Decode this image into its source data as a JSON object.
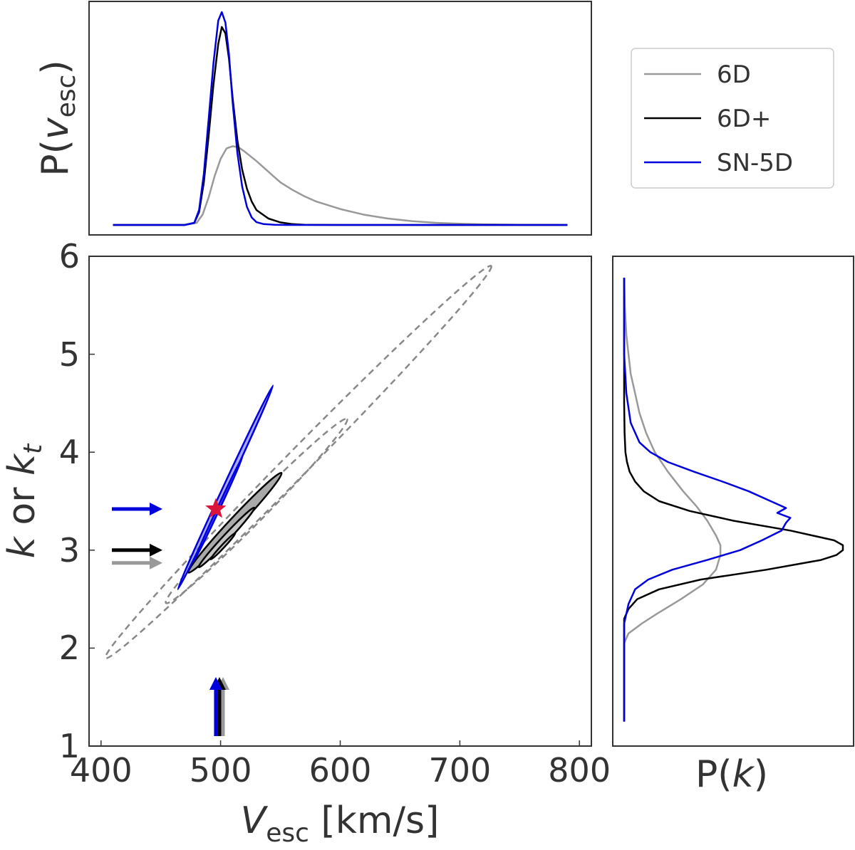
{
  "chart_data": {
    "type": "corner-plot",
    "axes": {
      "main": {
        "x_ticks": [
          "400",
          "500",
          "600",
          "700",
          "800"
        ],
        "y_ticks": [
          "1",
          "2",
          "3",
          "4",
          "5",
          "6"
        ],
        "xlim": [
          390,
          810
        ],
        "ylim": [
          1,
          6
        ],
        "xlabel": {
          "var": "V",
          "sub": "esc",
          "unit": " [km/s]"
        },
        "ylabel": {
          "a": "k",
          "or": " or ",
          "b": "k",
          "sub": "t"
        }
      },
      "top": {
        "ylabel": {
          "p": "P(",
          "var": "v",
          "sub": "esc",
          "close": ")"
        }
      },
      "right": {
        "xlabel": {
          "p": "P(",
          "var": "k",
          "close": ")"
        }
      }
    },
    "legend": {
      "position": "top-right",
      "entries": [
        {
          "label": "6D",
          "color": "#999999"
        },
        {
          "label": "6D+",
          "color": "#000000"
        },
        {
          "label": "SN-5D",
          "color": "#0000dd"
        }
      ]
    },
    "colors": {
      "gray": "#999999",
      "black": "#000000",
      "blue": "#0000dd",
      "star": "#dc143c"
    },
    "contours": [
      {
        "name": "6D",
        "style": "dashed-gray",
        "ellipses": [
          {
            "cx": 565,
            "cy": 3.9,
            "a": 230,
            "b": 10.4,
            "angle_deg": 45.5
          },
          {
            "cx": 530,
            "cy": 3.4,
            "a": 108,
            "b": 7.8,
            "angle_deg": 45.5
          }
        ]
      },
      {
        "name": "6D+",
        "style": "filled-black",
        "ellipses": [
          {
            "cx": 512,
            "cy": 3.28,
            "a": 57,
            "b": 4.5,
            "angle_deg": 47
          },
          {
            "cx": 505,
            "cy": 3.13,
            "a": 34,
            "b": 2.7,
            "angle_deg": 47
          },
          {
            "cx": 502,
            "cy": 3.04,
            "a": 15,
            "b": 1.3,
            "angle_deg": 47
          }
        ]
      },
      {
        "name": "SN-5D",
        "style": "filled-blue",
        "ellipses": [
          {
            "cx": 504,
            "cy": 3.64,
            "a": 94,
            "b": 1.9,
            "angle_deg": 65
          },
          {
            "cx": 498,
            "cy": 3.42,
            "a": 48,
            "b": 1.05,
            "angle_deg": 65
          }
        ]
      }
    ],
    "star": {
      "x": 496,
      "y": 3.42
    },
    "arrows_y": [
      {
        "name": "SN-5D",
        "y": 3.42,
        "color": "#0000dd"
      },
      {
        "name": "6D+",
        "y": 3.0,
        "color": "#000000"
      },
      {
        "name": "6D",
        "y": 2.87,
        "color": "#999999"
      }
    ],
    "arrows_x": [
      {
        "name": "6D",
        "x": 502,
        "color": "#999999"
      },
      {
        "name": "6D+",
        "x": 499,
        "color": "#000000"
      },
      {
        "name": "SN-5D",
        "x": 496,
        "color": "#0000dd"
      }
    ],
    "vesc_marginals": [
      {
        "name": "6D",
        "color": "#999999",
        "x": [
          410,
          470,
          480,
          485,
          490,
          495,
          500,
          505,
          510,
          515,
          520,
          530,
          540,
          550,
          560,
          570,
          580,
          600,
          620,
          640,
          660,
          680,
          700,
          720,
          750,
          790
        ],
        "y": [
          0,
          0,
          0.01,
          0.05,
          0.13,
          0.23,
          0.31,
          0.36,
          0.37,
          0.365,
          0.345,
          0.3,
          0.25,
          0.2,
          0.165,
          0.135,
          0.11,
          0.075,
          0.048,
          0.03,
          0.018,
          0.01,
          0.006,
          0.003,
          0.001,
          0
        ]
      },
      {
        "name": "6D+",
        "color": "#000000",
        "x": [
          410,
          470,
          478,
          482,
          486,
          490,
          494,
          498,
          501,
          504,
          507,
          510,
          514,
          518,
          522,
          526,
          530,
          540,
          550,
          560,
          570,
          600,
          790
        ],
        "y": [
          0,
          0,
          0.01,
          0.06,
          0.2,
          0.42,
          0.66,
          0.85,
          0.93,
          0.9,
          0.78,
          0.6,
          0.4,
          0.26,
          0.17,
          0.11,
          0.07,
          0.03,
          0.012,
          0.004,
          0.001,
          0,
          0
        ]
      },
      {
        "name": "SN-5D",
        "color": "#0000dd",
        "x": [
          410,
          470,
          478,
          482,
          486,
          490,
          494,
          498,
          501,
          504,
          507,
          510,
          514,
          518,
          522,
          526,
          530,
          536,
          545,
          555,
          790
        ],
        "y": [
          0,
          0,
          0.01,
          0.07,
          0.24,
          0.5,
          0.76,
          0.96,
          1.0,
          0.95,
          0.8,
          0.58,
          0.34,
          0.18,
          0.085,
          0.035,
          0.013,
          0.004,
          0.001,
          0,
          0
        ]
      }
    ],
    "k_marginals": [
      {
        "name": "6D",
        "color": "#999999",
        "k": [
          1.25,
          2.05,
          2.15,
          2.25,
          2.35,
          2.5,
          2.65,
          2.8,
          2.95,
          3.05,
          3.15,
          3.3,
          3.45,
          3.6,
          3.8,
          4.0,
          4.2,
          4.4,
          4.6,
          4.8,
          5.0,
          5.2,
          5.5,
          5.78
        ],
        "p": [
          0,
          0,
          0.02,
          0.08,
          0.15,
          0.26,
          0.36,
          0.42,
          0.44,
          0.44,
          0.42,
          0.38,
          0.33,
          0.27,
          0.2,
          0.14,
          0.1,
          0.07,
          0.05,
          0.03,
          0.02,
          0.01,
          0.003,
          0
        ]
      },
      {
        "name": "6D+",
        "color": "#000000",
        "k": [
          1.25,
          2.3,
          2.4,
          2.5,
          2.6,
          2.7,
          2.8,
          2.9,
          2.95,
          3.0,
          3.05,
          3.1,
          3.2,
          3.3,
          3.4,
          3.5,
          3.6,
          3.7,
          3.8,
          3.9,
          4.0,
          4.2,
          4.5,
          4.9,
          5.78
        ],
        "p": [
          0,
          0,
          0.02,
          0.06,
          0.16,
          0.35,
          0.65,
          0.9,
          0.97,
          1.0,
          1.0,
          0.96,
          0.76,
          0.5,
          0.3,
          0.16,
          0.09,
          0.05,
          0.025,
          0.013,
          0.006,
          0.002,
          0,
          0,
          0
        ]
      },
      {
        "name": "SN-5D",
        "color": "#0000dd",
        "k": [
          1.25,
          2.25,
          2.45,
          2.6,
          2.7,
          2.8,
          2.9,
          3.0,
          3.1,
          3.2,
          3.28,
          3.33,
          3.38,
          3.43,
          3.5,
          3.6,
          3.7,
          3.8,
          3.9,
          4.0,
          4.1,
          4.3,
          4.6,
          5.0,
          5.78
        ],
        "p": [
          0,
          0,
          0.02,
          0.05,
          0.11,
          0.22,
          0.38,
          0.53,
          0.63,
          0.72,
          0.74,
          0.76,
          0.7,
          0.74,
          0.67,
          0.57,
          0.45,
          0.32,
          0.2,
          0.12,
          0.07,
          0.03,
          0.01,
          0,
          0
        ]
      }
    ]
  }
}
